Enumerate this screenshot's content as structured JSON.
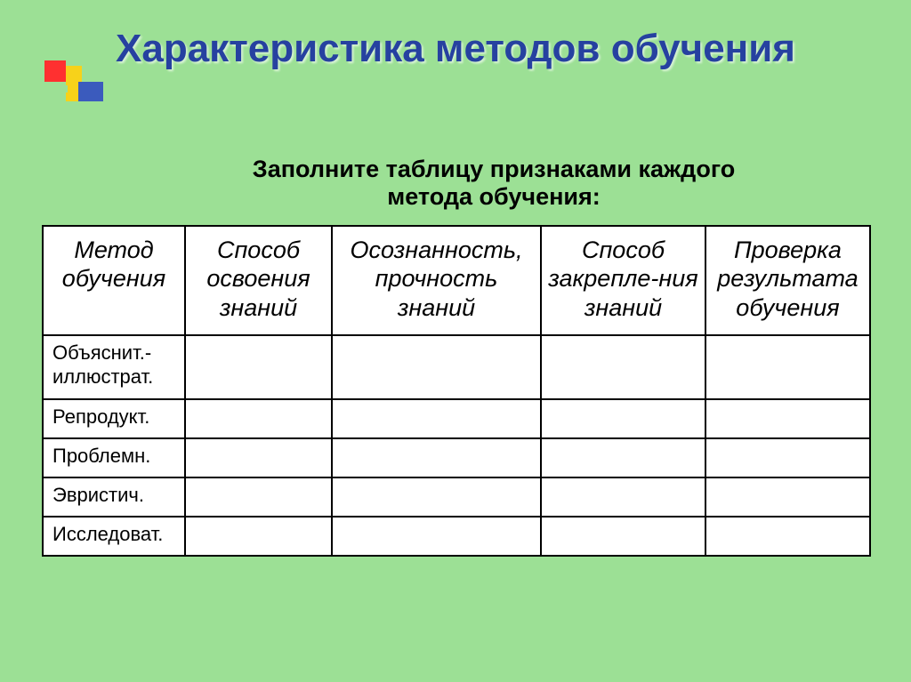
{
  "slide": {
    "background_color": "#9ce095",
    "title": "Характеристика методов обучения",
    "title_color": "#2641a0",
    "title_fontsize": 44,
    "subtitle": "Заполните таблицу признаками каждого метода обучения:",
    "subtitle_fontsize": 27
  },
  "logo_colors": {
    "red": "#ff3030",
    "yellow": "#f7d21a",
    "blue": "#3b5bbd"
  },
  "table": {
    "header_fontsize": 27,
    "cell_fontsize": 22,
    "border_color": "#000000",
    "background": "#ffffff",
    "columns": [
      "Метод обучения",
      "Способ освоения знаний",
      "Осознанность, прочность знаний",
      "Способ закрепле-ния знаний",
      "Проверка результата обучения"
    ],
    "rows": [
      {
        "label": "Объяснит.-иллюстрат.",
        "cells": [
          "",
          "",
          "",
          ""
        ]
      },
      {
        "label": "Репродукт.",
        "cells": [
          "",
          "",
          "",
          ""
        ]
      },
      {
        "label": "Проблемн.",
        "cells": [
          "",
          "",
          "",
          ""
        ]
      },
      {
        "label": "Эвристич.",
        "cells": [
          "",
          "",
          "",
          ""
        ]
      },
      {
        "label": "Исследоват.",
        "cells": [
          "",
          "",
          "",
          ""
        ]
      }
    ]
  }
}
